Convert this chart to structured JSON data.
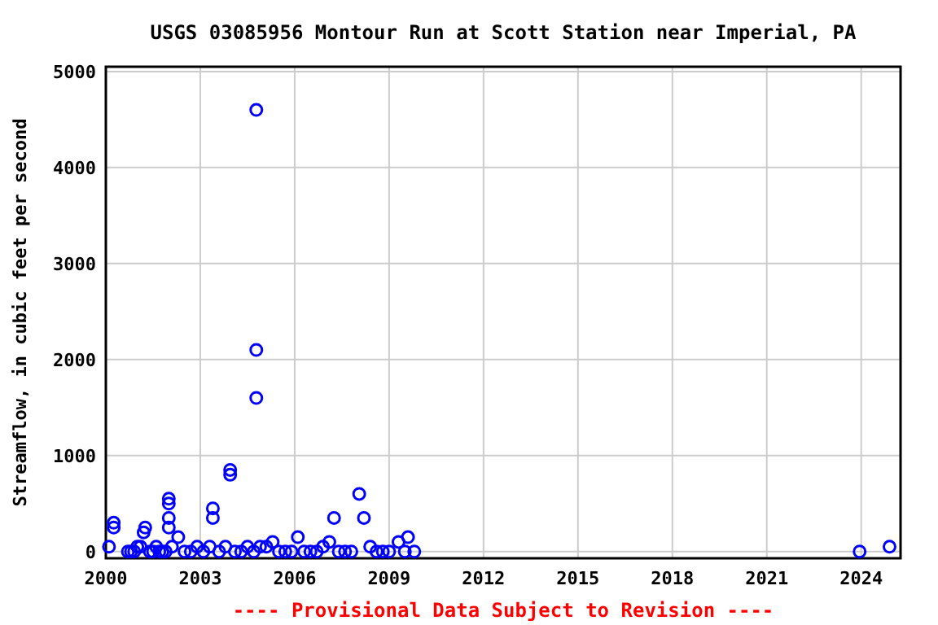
{
  "chart_data": {
    "type": "scatter",
    "title": "USGS 03085956 Montour Run at Scott Station near Imperial, PA",
    "ylabel": "Streamflow, in cubic feet per second",
    "annotations": [
      "---- Provisional Data Subject to Revision ----"
    ],
    "xlim": [
      2000,
      2025.25
    ],
    "xticks": [
      2000,
      2003,
      2006,
      2009,
      2012,
      2015,
      2018,
      2021,
      2024
    ],
    "ylim": [
      -70,
      5050
    ],
    "yticks": [
      0,
      1000,
      2000,
      3000,
      4000,
      5000
    ],
    "grid": true,
    "marker": "circle",
    "series": [
      {
        "color": "#0000ff",
        "x": [
          2000.1,
          2000.25,
          2000.25,
          2000.7,
          2000.8,
          2000.9,
          2001.0,
          2001.1,
          2001.2,
          2001.25,
          2001.4,
          2001.5,
          2001.6,
          2001.7,
          2001.8,
          2001.9,
          2002.0,
          2002.0,
          2002.0,
          2002.0,
          2002.1,
          2002.3,
          2002.5,
          2002.7,
          2002.9,
          2003.1,
          2003.3,
          2003.4,
          2003.4,
          2003.6,
          2003.8,
          2003.95,
          2003.95,
          2004.1,
          2004.3,
          2004.5,
          2004.7,
          2004.78,
          2004.78,
          2004.78,
          2004.9,
          2005.1,
          2005.3,
          2005.5,
          2005.7,
          2005.9,
          2006.1,
          2006.3,
          2006.5,
          2006.7,
          2006.9,
          2007.1,
          2007.25,
          2007.4,
          2007.6,
          2007.8,
          2008.05,
          2008.2,
          2008.4,
          2008.6,
          2008.8,
          2009.0,
          2009.3,
          2009.5,
          2009.6,
          2009.8,
          2023.95,
          2024.9
        ],
        "values": [
          50,
          300,
          250,
          0,
          0,
          0,
          50,
          50,
          200,
          250,
          0,
          0,
          50,
          0,
          0,
          0,
          550,
          500,
          350,
          250,
          50,
          150,
          0,
          0,
          50,
          0,
          50,
          450,
          350,
          0,
          50,
          850,
          800,
          0,
          0,
          50,
          0,
          4600,
          2100,
          1600,
          50,
          50,
          100,
          0,
          0,
          0,
          150,
          0,
          0,
          0,
          50,
          100,
          350,
          0,
          0,
          0,
          600,
          350,
          50,
          0,
          0,
          0,
          100,
          0,
          150,
          0,
          0,
          50
        ]
      }
    ]
  }
}
